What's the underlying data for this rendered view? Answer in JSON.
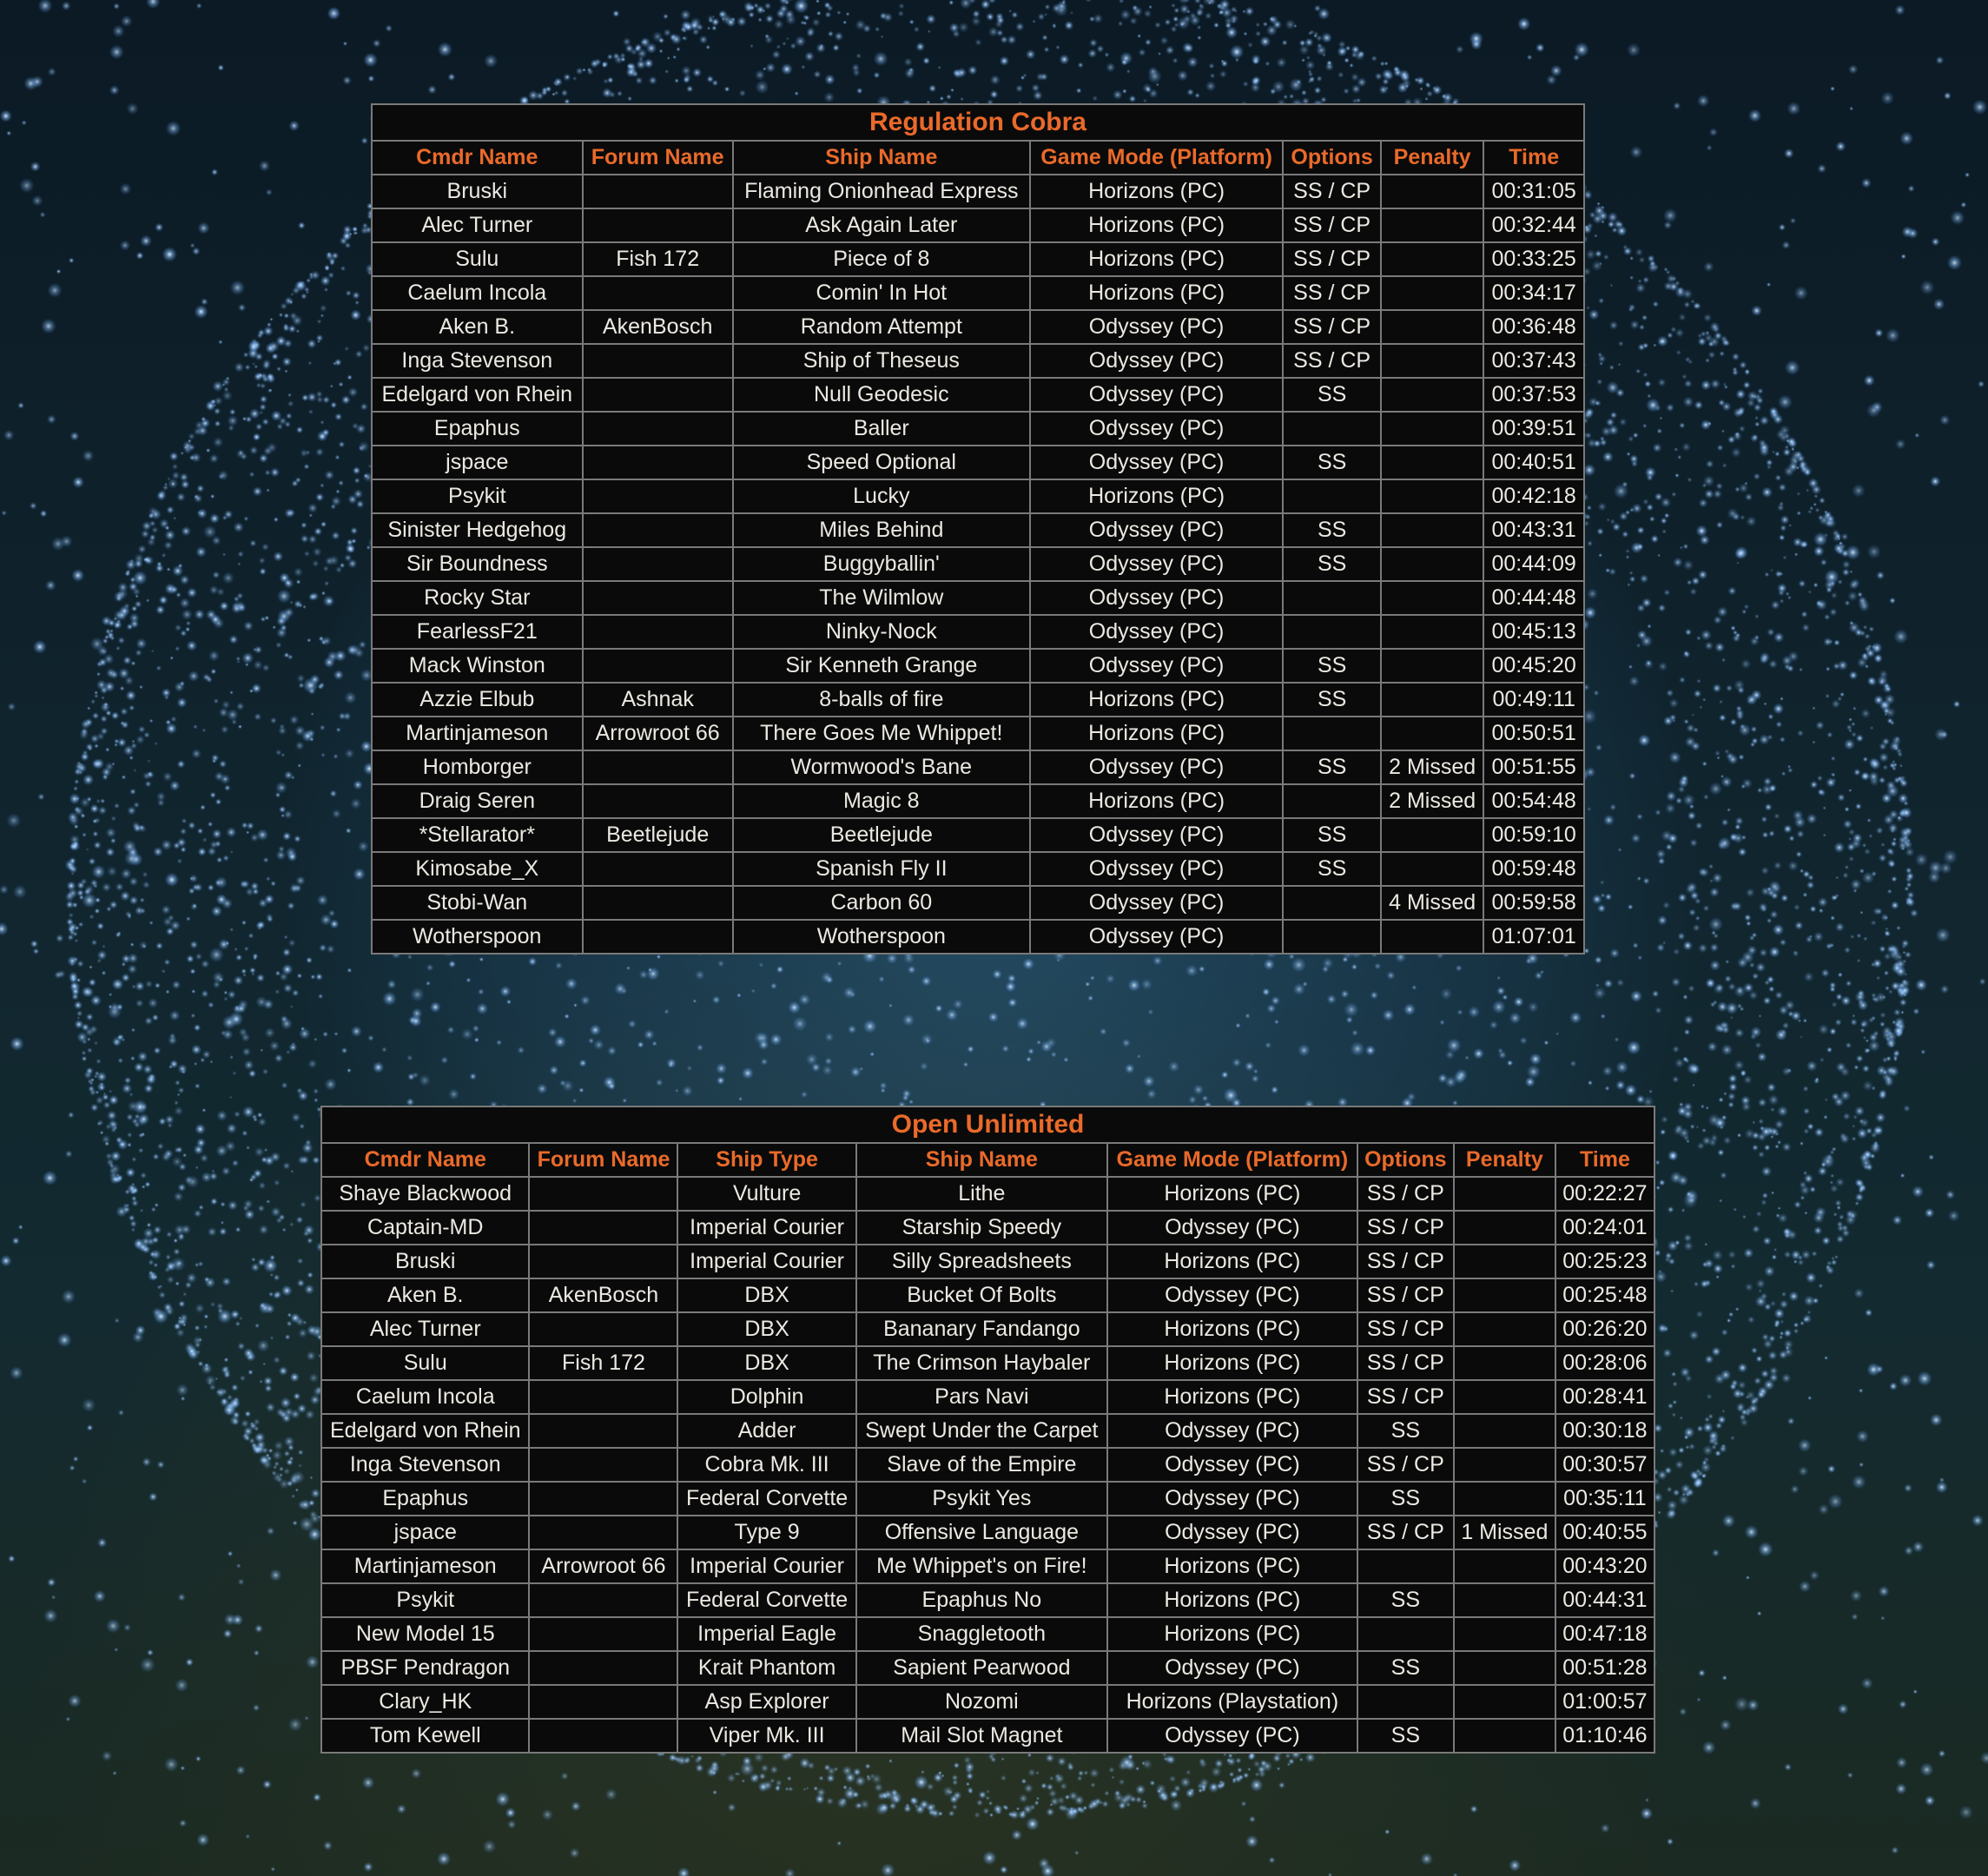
{
  "colors": {
    "header_text": "#ea6a2a",
    "cell_text": "#ece9e2",
    "table_bg": "#0a0a0a",
    "grid": "#7a7a7a"
  },
  "regulation": {
    "title": "Regulation Cobra",
    "headers": [
      "Cmdr Name",
      "Forum Name",
      "Ship Name",
      "Game Mode (Platform)",
      "Options",
      "Penalty",
      "Time"
    ],
    "rows": [
      [
        "Bruski",
        "",
        "Flaming Onionhead Express",
        "Horizons (PC)",
        "SS / CP",
        "",
        "00:31:05"
      ],
      [
        "Alec Turner",
        "",
        "Ask Again Later",
        "Horizons (PC)",
        "SS / CP",
        "",
        "00:32:44"
      ],
      [
        "Sulu",
        "Fish 172",
        "Piece of 8",
        "Horizons (PC)",
        "SS / CP",
        "",
        "00:33:25"
      ],
      [
        "Caelum Incola",
        "",
        "Comin' In Hot",
        "Horizons (PC)",
        "SS / CP",
        "",
        "00:34:17"
      ],
      [
        "Aken B.",
        "AkenBosch",
        "Random Attempt",
        "Odyssey (PC)",
        "SS / CP",
        "",
        "00:36:48"
      ],
      [
        "Inga Stevenson",
        "",
        "Ship of Theseus",
        "Odyssey (PC)",
        "SS / CP",
        "",
        "00:37:43"
      ],
      [
        "Edelgard von Rhein",
        "",
        "Null Geodesic",
        "Odyssey (PC)",
        "SS",
        "",
        "00:37:53"
      ],
      [
        "Epaphus",
        "",
        "Baller",
        "Odyssey (PC)",
        "",
        "",
        "00:39:51"
      ],
      [
        "jspace",
        "",
        "Speed Optional",
        "Odyssey (PC)",
        "SS",
        "",
        "00:40:51"
      ],
      [
        "Psykit",
        "",
        "Lucky",
        "Horizons (PC)",
        "",
        "",
        "00:42:18"
      ],
      [
        "Sinister Hedgehog",
        "",
        "Miles Behind",
        "Odyssey (PC)",
        "SS",
        "",
        "00:43:31"
      ],
      [
        "Sir Boundness",
        "",
        "Buggyballin'",
        "Odyssey (PC)",
        "SS",
        "",
        "00:44:09"
      ],
      [
        "Rocky Star",
        "",
        "The Wilmlow",
        "Odyssey (PC)",
        "",
        "",
        "00:44:48"
      ],
      [
        "FearlessF21",
        "",
        "Ninky-Nock",
        "Odyssey (PC)",
        "",
        "",
        "00:45:13"
      ],
      [
        "Mack Winston",
        "",
        "Sir Kenneth Grange",
        "Odyssey (PC)",
        "SS",
        "",
        "00:45:20"
      ],
      [
        "Azzie Elbub",
        "Ashnak",
        "8-balls of fire",
        "Horizons (PC)",
        "SS",
        "",
        "00:49:11"
      ],
      [
        "Martinjameson",
        "Arrowroot 66",
        "There Goes Me Whippet!",
        "Horizons (PC)",
        "",
        "",
        "00:50:51"
      ],
      [
        "Homborger",
        "",
        "Wormwood's Bane",
        "Odyssey (PC)",
        "SS",
        "2 Missed",
        "00:51:55"
      ],
      [
        "Draig Seren",
        "",
        "Magic 8",
        "Horizons (PC)",
        "",
        "2 Missed",
        "00:54:48"
      ],
      [
        "*Stellarator*",
        "Beetlejude",
        "Beetlejude",
        "Odyssey (PC)",
        "SS",
        "",
        "00:59:10"
      ],
      [
        "Kimosabe_X",
        "",
        "Spanish Fly II",
        "Odyssey (PC)",
        "SS",
        "",
        "00:59:48"
      ],
      [
        "Stobi-Wan",
        "",
        "Carbon 60",
        "Odyssey (PC)",
        "",
        "4 Missed",
        "00:59:58"
      ],
      [
        "Wotherspoon",
        "",
        "Wotherspoon",
        "Odyssey (PC)",
        "",
        "",
        "01:07:01"
      ]
    ]
  },
  "unlimited": {
    "title": "Open Unlimited",
    "headers": [
      "Cmdr Name",
      "Forum Name",
      "Ship Type",
      "Ship Name",
      "Game Mode (Platform)",
      "Options",
      "Penalty",
      "Time"
    ],
    "rows": [
      [
        "Shaye Blackwood",
        "",
        "Vulture",
        "Lithe",
        "Horizons (PC)",
        "SS / CP",
        "",
        "00:22:27"
      ],
      [
        "Captain-MD",
        "",
        "Imperial Courier",
        "Starship Speedy",
        "Odyssey (PC)",
        "SS / CP",
        "",
        "00:24:01"
      ],
      [
        "Bruski",
        "",
        "Imperial Courier",
        "Silly Spreadsheets",
        "Horizons (PC)",
        "SS / CP",
        "",
        "00:25:23"
      ],
      [
        "Aken B.",
        "AkenBosch",
        "DBX",
        "Bucket Of Bolts",
        "Odyssey (PC)",
        "SS / CP",
        "",
        "00:25:48"
      ],
      [
        "Alec Turner",
        "",
        "DBX",
        "Bananary Fandango",
        "Horizons (PC)",
        "SS / CP",
        "",
        "00:26:20"
      ],
      [
        "Sulu",
        "Fish 172",
        "DBX",
        "The Crimson Haybaler",
        "Horizons (PC)",
        "SS / CP",
        "",
        "00:28:06"
      ],
      [
        "Caelum Incola",
        "",
        "Dolphin",
        "Pars Navi",
        "Horizons (PC)",
        "SS / CP",
        "",
        "00:28:41"
      ],
      [
        "Edelgard von Rhein",
        "",
        "Adder",
        "Swept Under the Carpet",
        "Odyssey (PC)",
        "SS",
        "",
        "00:30:18"
      ],
      [
        "Inga Stevenson",
        "",
        "Cobra Mk. III",
        "Slave of the Empire",
        "Odyssey (PC)",
        "SS / CP",
        "",
        "00:30:57"
      ],
      [
        "Epaphus",
        "",
        "Federal Corvette",
        "Psykit Yes",
        "Odyssey (PC)",
        "SS",
        "",
        "00:35:11"
      ],
      [
        "jspace",
        "",
        "Type 9",
        "Offensive Language",
        "Odyssey (PC)",
        "SS / CP",
        "1 Missed",
        "00:40:55"
      ],
      [
        "Martinjameson",
        "Arrowroot 66",
        "Imperial Courier",
        "Me Whippet's on Fire!",
        "Horizons (PC)",
        "",
        "",
        "00:43:20"
      ],
      [
        "Psykit",
        "",
        "Federal Corvette",
        "Epaphus No",
        "Horizons (PC)",
        "SS",
        "",
        "00:44:31"
      ],
      [
        "New Model 15",
        "",
        "Imperial Eagle",
        "Snaggletooth",
        "Horizons (PC)",
        "",
        "",
        "00:47:18"
      ],
      [
        "PBSF Pendragon",
        "",
        "Krait Phantom",
        "Sapient Pearwood",
        "Odyssey (PC)",
        "SS",
        "",
        "00:51:28"
      ],
      [
        "Clary_HK",
        "",
        "Asp Explorer",
        "Nozomi",
        "Horizons (Playstation)",
        "",
        "",
        "01:00:57"
      ],
      [
        "Tom Kewell",
        "",
        "Viper Mk. III",
        "Mail Slot Magnet",
        "Odyssey (PC)",
        "SS",
        "",
        "01:10:46"
      ]
    ]
  }
}
